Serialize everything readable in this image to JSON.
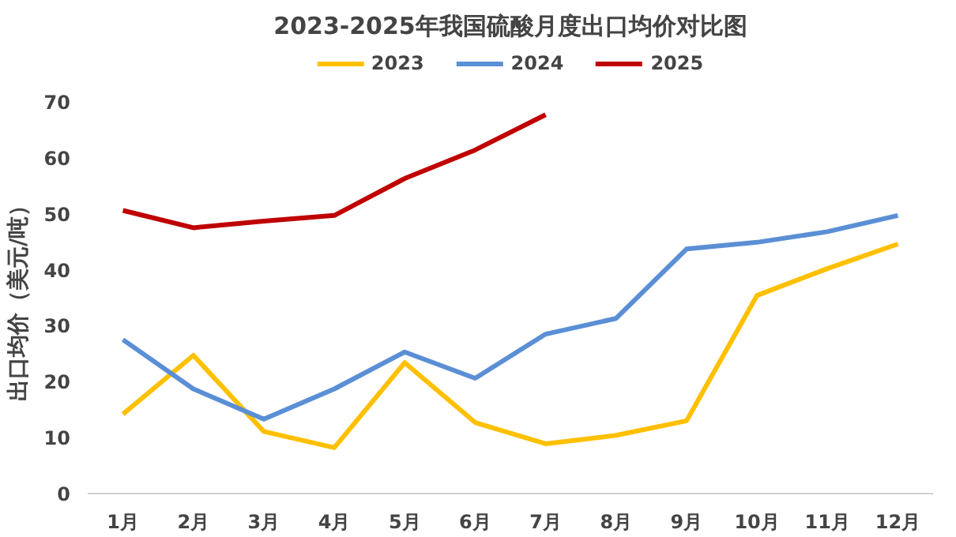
{
  "chart_data": {
    "type": "line",
    "title": "2023-2025年我国硫酸月度出口均价对比图",
    "ylabel": "出口均价（美元/吨）",
    "categories": [
      "1月",
      "2月",
      "3月",
      "4月",
      "5月",
      "6月",
      "7月",
      "8月",
      "9月",
      "10月",
      "11月",
      "12月"
    ],
    "ylim": [
      0,
      70
    ],
    "yticks": [
      0,
      10,
      20,
      30,
      40,
      50,
      60,
      70
    ],
    "grid": false,
    "legend": "top",
    "marker": "none",
    "line_style": "solid",
    "series": [
      {
        "name": "2023",
        "color": "#ffc000",
        "values": [
          14.2,
          24.7,
          11.1,
          8.2,
          23.4,
          12.7,
          8.9,
          10.4,
          13.0,
          35.4,
          40.2,
          44.6
        ]
      },
      {
        "name": "2024",
        "color": "#5b8fd5",
        "values": [
          27.5,
          18.7,
          13.3,
          18.7,
          25.3,
          20.6,
          28.5,
          31.3,
          43.7,
          44.9,
          46.8,
          49.7
        ]
      },
      {
        "name": "2025",
        "color": "#c00000",
        "values": [
          50.6,
          47.5,
          48.7,
          49.7,
          56.3,
          61.4,
          67.7,
          null,
          null,
          null,
          null,
          null
        ]
      }
    ]
  }
}
